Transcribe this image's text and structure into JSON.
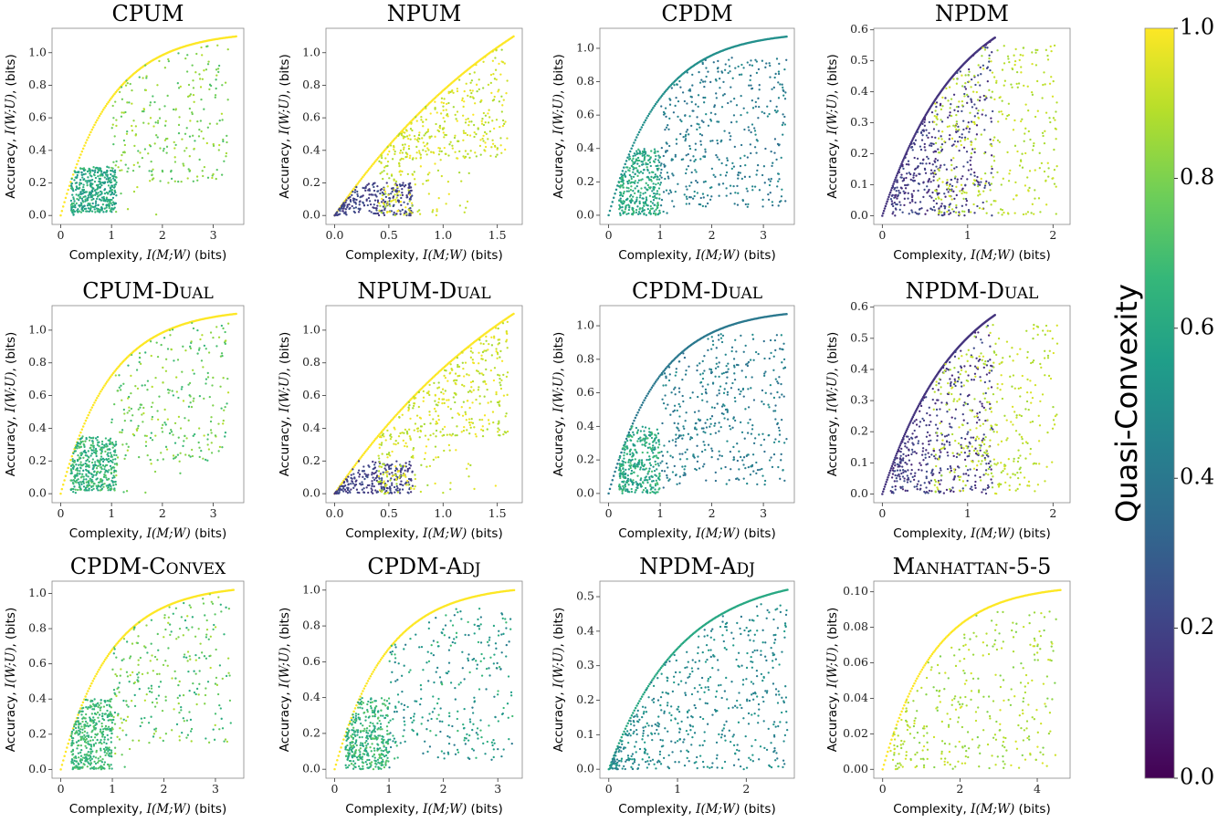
{
  "colors": {
    "viridis": [
      "#440154",
      "#482878",
      "#3e4989",
      "#31688e",
      "#26828e",
      "#1f9e89",
      "#35b779",
      "#6ece58",
      "#b5de2b",
      "#fde725"
    ],
    "frame": "#888888"
  },
  "chart_data": [
    {
      "type": "scatter",
      "title": "CPUM",
      "title_parts": [
        {
          "t": "CPUM"
        }
      ],
      "xlabel": "Complexity, ",
      "xlabel_math": "I(M;W)",
      "xlabel_unit": " (bits)",
      "ylabel": "Accuracy, ",
      "ylabel_math": "I(W;U)",
      "ylabel_unit": ", (bits)",
      "xlim": [
        -0.17,
        3.6
      ],
      "ylim": [
        -0.055,
        1.15
      ],
      "xticks": [
        0,
        1,
        2,
        3
      ],
      "yticks": [
        0.0,
        0.2,
        0.4,
        0.6,
        0.8,
        1.0
      ],
      "x_max": 3.45,
      "y_max": 1.1,
      "frontier_curvature": 3.5,
      "frontier_value": 1.0,
      "cloud": [
        {
          "x": [
            0.2,
            1.1
          ],
          "y": [
            0.02,
            0.3
          ],
          "c": [
            0.5,
            0.7
          ],
          "n": 420
        },
        {
          "x": [
            1.0,
            3.3
          ],
          "y": [
            0.2,
            1.05
          ],
          "c": [
            0.7,
            0.9
          ],
          "n": 250
        }
      ],
      "c_range": [
        0.5,
        0.95
      ]
    },
    {
      "type": "scatter",
      "title": "NPUM",
      "title_parts": [
        {
          "t": "NPUM"
        }
      ],
      "xlabel": "Complexity, ",
      "xlabel_math": "I(M;W)",
      "xlabel_unit": " (bits)",
      "ylabel": "Accuracy, ",
      "ylabel_math": "I(W;U)",
      "ylabel_unit": ", (bits)",
      "xlim": [
        -0.08,
        1.73
      ],
      "ylim": [
        -0.055,
        1.15
      ],
      "xticks": [
        0.0,
        0.5,
        1.0,
        1.5
      ],
      "yticks": [
        0.0,
        0.2,
        0.4,
        0.6,
        0.8,
        1.0
      ],
      "x_max": 1.65,
      "y_max": 1.1,
      "frontier_curvature": 0.8,
      "frontier_value": 1.0,
      "cloud": [
        {
          "x": [
            0.0,
            0.72
          ],
          "y": [
            0.0,
            0.2
          ],
          "c": [
            0.15,
            0.25
          ],
          "n": 260
        },
        {
          "x": [
            0.4,
            1.6
          ],
          "y": [
            0.35,
            1.08
          ],
          "c": [
            0.85,
            1.0
          ],
          "n": 420
        }
      ],
      "c_range": [
        0.8,
        1.0
      ]
    },
    {
      "type": "scatter",
      "title": "CPDM",
      "title_parts": [
        {
          "t": "CPDM"
        }
      ],
      "xlabel": "Complexity, ",
      "xlabel_math": "I(M;W)",
      "xlabel_unit": " (bits)",
      "ylabel": "Accuracy, ",
      "ylabel_math": "I(W;U)",
      "ylabel_unit": ", (bits)",
      "xlim": [
        -0.17,
        3.6
      ],
      "ylim": [
        -0.055,
        1.12
      ],
      "xticks": [
        0,
        1,
        2,
        3
      ],
      "yticks": [
        0.0,
        0.2,
        0.4,
        0.6,
        0.8,
        1.0
      ],
      "x_max": 3.45,
      "y_max": 1.07,
      "frontier_curvature": 3.5,
      "frontier_value": 0.5,
      "cloud": [
        {
          "x": [
            0.2,
            1.0
          ],
          "y": [
            0.0,
            0.4
          ],
          "c": [
            0.5,
            0.7
          ],
          "n": 350
        },
        {
          "x": [
            1.0,
            3.45
          ],
          "y": [
            0.05,
            0.95
          ],
          "c": [
            0.35,
            0.5
          ],
          "n": 420
        }
      ],
      "c_range": [
        0.35,
        0.7
      ]
    },
    {
      "type": "scatter",
      "title": "NPDM",
      "title_parts": [
        {
          "t": "NPDM"
        }
      ],
      "xlabel": "Complexity, ",
      "xlabel_math": "I(M;W)",
      "xlabel_unit": " (bits)",
      "ylabel": "Accuracy, ",
      "ylabel_math": "I(W;U)",
      "ylabel_unit": ", (bits)",
      "xlim": [
        -0.1,
        2.2
      ],
      "ylim": [
        -0.028,
        0.605
      ],
      "xticks": [
        0,
        1,
        2
      ],
      "yticks": [
        0.0,
        0.1,
        0.2,
        0.3,
        0.4,
        0.5,
        0.6
      ],
      "x_max": 1.32,
      "y_max": 0.575,
      "frontier_curvature": 1.5,
      "frontier_value": 0.15,
      "cloud": [
        {
          "x": [
            0.1,
            1.3
          ],
          "y": [
            0.0,
            0.57
          ],
          "c": [
            0.1,
            0.25
          ],
          "n": 420
        },
        {
          "x": [
            0.6,
            2.05
          ],
          "y": [
            0.0,
            0.55
          ],
          "c": [
            0.85,
            0.95
          ],
          "n": 330
        }
      ],
      "c_range": [
        0.1,
        0.95
      ]
    },
    {
      "type": "scatter",
      "title": "CPUM-Dual",
      "title_parts": [
        {
          "t": "CPUM-"
        },
        {
          "t": "Dual",
          "sc": true
        }
      ],
      "xlabel": "Complexity, ",
      "xlabel_math": "I(M;W)",
      "xlabel_unit": " (bits)",
      "ylabel": "Accuracy, ",
      "ylabel_math": "I(W;U)",
      "ylabel_unit": ", (bits)",
      "xlim": [
        -0.17,
        3.6
      ],
      "ylim": [
        -0.055,
        1.15
      ],
      "xticks": [
        0,
        1,
        2,
        3
      ],
      "yticks": [
        0.0,
        0.2,
        0.4,
        0.6,
        0.8,
        1.0
      ],
      "x_max": 3.45,
      "y_max": 1.1,
      "frontier_curvature": 3.5,
      "frontier_value": 1.0,
      "cloud": [
        {
          "x": [
            0.2,
            1.1
          ],
          "y": [
            0.02,
            0.35
          ],
          "c": [
            0.55,
            0.75
          ],
          "n": 420
        },
        {
          "x": [
            1.0,
            3.3
          ],
          "y": [
            0.2,
            1.05
          ],
          "c": [
            0.65,
            0.9
          ],
          "n": 260
        }
      ],
      "c_range": [
        0.55,
        0.95
      ]
    },
    {
      "type": "scatter",
      "title": "NPUM-Dual",
      "title_parts": [
        {
          "t": "NPUM-"
        },
        {
          "t": "Dual",
          "sc": true
        }
      ],
      "xlabel": "Complexity, ",
      "xlabel_math": "I(M;W)",
      "xlabel_unit": " (bits)",
      "ylabel": "Accuracy, ",
      "ylabel_math": "I(W;U)",
      "ylabel_unit": ", (bits)",
      "xlim": [
        -0.08,
        1.73
      ],
      "ylim": [
        -0.055,
        1.15
      ],
      "xticks": [
        0.0,
        0.5,
        1.0,
        1.5
      ],
      "yticks": [
        0.0,
        0.2,
        0.4,
        0.6,
        0.8,
        1.0
      ],
      "x_max": 1.65,
      "y_max": 1.1,
      "frontier_curvature": 0.8,
      "frontier_value": 1.0,
      "cloud": [
        {
          "x": [
            0.0,
            0.72
          ],
          "y": [
            0.0,
            0.2
          ],
          "c": [
            0.15,
            0.25
          ],
          "n": 260
        },
        {
          "x": [
            0.4,
            1.6
          ],
          "y": [
            0.35,
            1.08
          ],
          "c": [
            0.85,
            1.0
          ],
          "n": 420
        }
      ],
      "c_range": [
        0.8,
        1.0
      ]
    },
    {
      "type": "scatter",
      "title": "CPDM-Dual",
      "title_parts": [
        {
          "t": "CPDM-"
        },
        {
          "t": "Dual",
          "sc": true
        }
      ],
      "xlabel": "Complexity, ",
      "xlabel_math": "I(M;W)",
      "xlabel_unit": " (bits)",
      "ylabel": "Accuracy, ",
      "ylabel_math": "I(W;U)",
      "ylabel_unit": ", (bits)",
      "xlim": [
        -0.17,
        3.6
      ],
      "ylim": [
        -0.055,
        1.12
      ],
      "xticks": [
        0,
        1,
        2,
        3
      ],
      "yticks": [
        0.0,
        0.2,
        0.4,
        0.6,
        0.8,
        1.0
      ],
      "x_max": 3.45,
      "y_max": 1.07,
      "frontier_curvature": 3.5,
      "frontier_value": 0.4,
      "cloud": [
        {
          "x": [
            0.2,
            1.0
          ],
          "y": [
            0.0,
            0.4
          ],
          "c": [
            0.5,
            0.7
          ],
          "n": 350
        },
        {
          "x": [
            1.0,
            3.45
          ],
          "y": [
            0.05,
            0.95
          ],
          "c": [
            0.35,
            0.5
          ],
          "n": 420
        }
      ],
      "c_range": [
        0.35,
        0.7
      ]
    },
    {
      "type": "scatter",
      "title": "NPDM-Dual",
      "title_parts": [
        {
          "t": "NPDM-"
        },
        {
          "t": "Dual",
          "sc": true
        }
      ],
      "xlabel": "Complexity, ",
      "xlabel_math": "I(M;W)",
      "xlabel_unit": " (bits)",
      "ylabel": "Accuracy, ",
      "ylabel_math": "I(W;U)",
      "ylabel_unit": ", (bits)",
      "xlim": [
        -0.1,
        2.2
      ],
      "ylim": [
        -0.028,
        0.605
      ],
      "xticks": [
        0,
        1,
        2
      ],
      "yticks": [
        0.0,
        0.1,
        0.2,
        0.3,
        0.4,
        0.5,
        0.6
      ],
      "x_max": 1.32,
      "y_max": 0.575,
      "frontier_curvature": 1.5,
      "frontier_value": 0.15,
      "cloud": [
        {
          "x": [
            0.1,
            1.3
          ],
          "y": [
            0.0,
            0.57
          ],
          "c": [
            0.1,
            0.25
          ],
          "n": 420
        },
        {
          "x": [
            0.6,
            2.05
          ],
          "y": [
            0.0,
            0.55
          ],
          "c": [
            0.85,
            0.95
          ],
          "n": 330
        }
      ],
      "c_range": [
        0.1,
        0.95
      ]
    },
    {
      "type": "scatter",
      "title": "CPDM-Convex",
      "title_parts": [
        {
          "t": "CPDM-"
        },
        {
          "t": "Convex",
          "sc": true
        }
      ],
      "xlabel": "Complexity, ",
      "xlabel_math": "I(M;W)",
      "xlabel_unit": " (bits)",
      "ylabel": "Accuracy, ",
      "ylabel_math": "I(W;U)",
      "ylabel_unit": ", (bits)",
      "xlim": [
        -0.17,
        3.55
      ],
      "ylim": [
        -0.05,
        1.07
      ],
      "xticks": [
        0,
        1,
        2,
        3
      ],
      "yticks": [
        0.0,
        0.2,
        0.4,
        0.6,
        0.8,
        1.0
      ],
      "x_max": 3.35,
      "y_max": 1.02,
      "frontier_curvature": 3.5,
      "frontier_value": 1.0,
      "cloud": [
        {
          "x": [
            0.2,
            1.0
          ],
          "y": [
            0.0,
            0.4
          ],
          "c": [
            0.6,
            0.75
          ],
          "n": 400
        },
        {
          "x": [
            1.0,
            3.3
          ],
          "y": [
            0.15,
            1.0
          ],
          "c": [
            0.6,
            0.9
          ],
          "n": 270
        }
      ],
      "c_range": [
        0.55,
        0.95
      ]
    },
    {
      "type": "scatter",
      "title": "CPDM-Adj",
      "title_parts": [
        {
          "t": "CPDM-"
        },
        {
          "t": "Adj",
          "sc": true
        }
      ],
      "xlabel": "Complexity, ",
      "xlabel_math": "I(M;W)",
      "xlabel_unit": " (bits)",
      "ylabel": "Accuracy, ",
      "ylabel_math": "I(W;U)",
      "ylabel_unit": ", (bits)",
      "xlim": [
        -0.16,
        3.45
      ],
      "ylim": [
        -0.05,
        1.05
      ],
      "xticks": [
        0,
        1,
        2,
        3
      ],
      "yticks": [
        0.0,
        0.2,
        0.4,
        0.6,
        0.8,
        1.0
      ],
      "x_max": 3.3,
      "y_max": 1.0,
      "frontier_curvature": 3.5,
      "frontier_value": 1.0,
      "cloud": [
        {
          "x": [
            0.2,
            1.0
          ],
          "y": [
            0.0,
            0.4
          ],
          "c": [
            0.55,
            0.75
          ],
          "n": 380
        },
        {
          "x": [
            1.0,
            3.3
          ],
          "y": [
            0.05,
            0.9
          ],
          "c": [
            0.4,
            0.7
          ],
          "n": 300
        }
      ],
      "c_range": [
        0.4,
        0.95
      ]
    },
    {
      "type": "scatter",
      "title": "NPDM-Adj",
      "title_parts": [
        {
          "t": "NPDM-"
        },
        {
          "t": "Adj",
          "sc": true
        }
      ],
      "xlabel": "Complexity, ",
      "xlabel_math": "I(M;W)",
      "xlabel_unit": " (bits)",
      "ylabel": "Accuracy, ",
      "ylabel_math": "I(W;U)",
      "ylabel_unit": ", (bits)",
      "xlim": [
        -0.13,
        2.7
      ],
      "ylim": [
        -0.026,
        0.545
      ],
      "xticks": [
        0,
        1,
        2
      ],
      "yticks": [
        0.0,
        0.1,
        0.2,
        0.3,
        0.4,
        0.5
      ],
      "x_max": 2.6,
      "y_max": 0.52,
      "frontier_curvature": 2.5,
      "frontier_value": 0.6,
      "cloud": [
        {
          "x": [
            0.0,
            2.6
          ],
          "y": [
            0.0,
            0.48
          ],
          "c": [
            0.4,
            0.55
          ],
          "n": 550
        }
      ],
      "c_range": [
        0.4,
        0.6
      ]
    },
    {
      "type": "scatter",
      "title": "Manhattan-5-5",
      "title_parts": [
        {
          "t": "Manhattan-5-5",
          "sc": true
        }
      ],
      "xlabel": "Complexity, ",
      "xlabel_math": "I(M;W)",
      "xlabel_unit": " (bits)",
      "ylabel": "Accuracy, ",
      "ylabel_math": "I(W;U)",
      "ylabel_unit": ", (bits)",
      "xlim": [
        -0.23,
        4.85
      ],
      "ylim": [
        -0.005,
        0.106
      ],
      "xticks": [
        0,
        2,
        4
      ],
      "yticks": [
        0.0,
        0.02,
        0.04,
        0.06,
        0.08,
        0.1
      ],
      "ytick_labels": [
        "0.00",
        "0.02",
        "0.04",
        "0.06",
        "0.08",
        "0.10"
      ],
      "x_max": 4.6,
      "y_max": 0.101,
      "frontier_curvature": 3.5,
      "frontier_value": 1.0,
      "cloud": [
        {
          "x": [
            0.2,
            4.5
          ],
          "y": [
            0.0,
            0.09
          ],
          "c": [
            0.8,
            0.95
          ],
          "n": 330
        }
      ],
      "c_range": [
        0.8,
        1.0
      ]
    }
  ],
  "colorbar": {
    "label": "Quasi-Convexity",
    "ticks": [
      0.0,
      0.2,
      0.4,
      0.6,
      0.8,
      1.0
    ],
    "tick_labels": [
      "0.0",
      "0.2",
      "0.4",
      "0.6",
      "0.8",
      "1.0"
    ],
    "range": [
      0,
      1
    ]
  }
}
